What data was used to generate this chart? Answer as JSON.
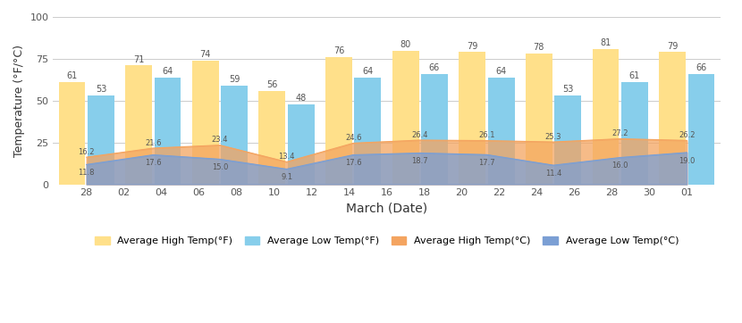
{
  "high_F_vals": [
    61,
    71,
    74,
    56,
    76,
    80,
    79,
    78,
    81,
    79
  ],
  "low_F_vals": [
    53,
    64,
    59,
    48,
    64,
    66,
    64,
    53,
    61,
    66
  ],
  "high_C_vals": [
    16.2,
    21.6,
    23.4,
    13.4,
    24.6,
    26.4,
    26.1,
    25.3,
    27.2,
    26.2
  ],
  "low_C_vals": [
    11.8,
    17.6,
    15.0,
    9.1,
    17.6,
    18.7,
    17.7,
    11.4,
    16.0,
    19.0
  ],
  "xtick_labels": [
    "28",
    "02",
    "04",
    "06",
    "08",
    "10",
    "12",
    "14",
    "16",
    "18",
    "20",
    "22",
    "24",
    "26",
    "28",
    "30",
    "01"
  ],
  "color_high_F": "#FFE08A",
  "color_low_F": "#87CEEB",
  "color_high_C": "#F4A460",
  "color_low_C": "#7B9FD4",
  "ylabel": "Temperature (°F/°C)",
  "xlabel": "March (Date)",
  "ylim": [
    0,
    100
  ],
  "yticks": [
    0,
    25,
    50,
    75,
    100
  ],
  "legend_labels": [
    "Average High Temp(°F)",
    "Average Low Temp(°F)",
    "Average High Temp(°C)",
    "Average Low Temp(°C)"
  ]
}
